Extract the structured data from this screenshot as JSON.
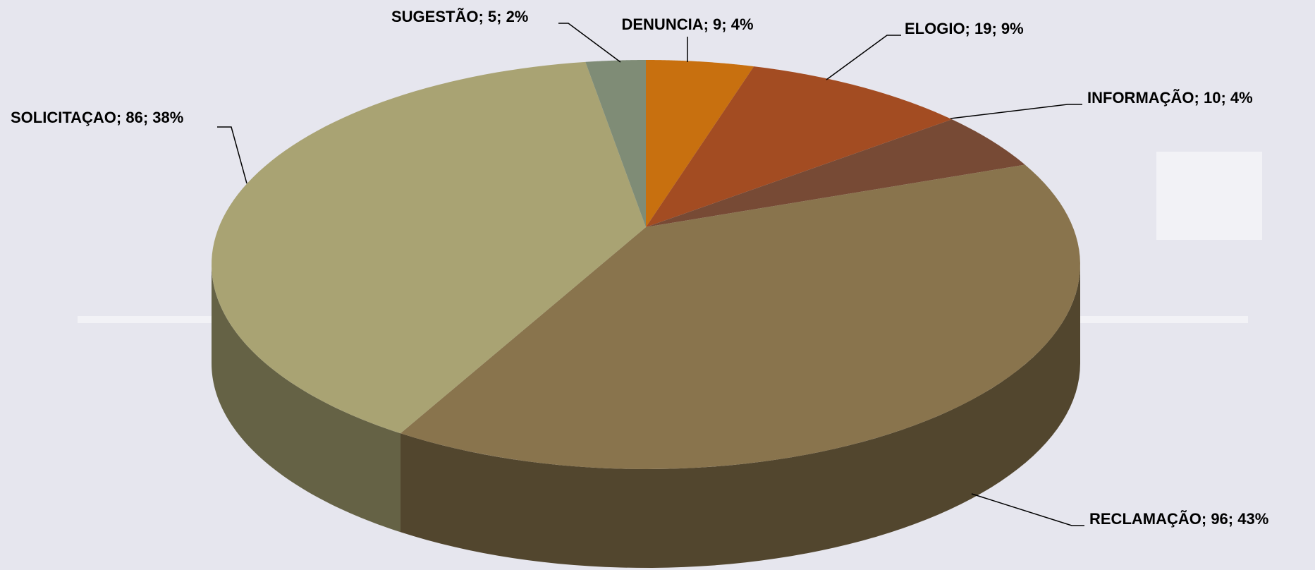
{
  "chart_data": {
    "type": "pie3d",
    "values": [
      9,
      19,
      10,
      96,
      86,
      5
    ],
    "value_labels": [
      "DENUNCIA; 9; 4%",
      "ELOGIO; 19; 9%",
      "INFORMAÇÃO; 10; 4%",
      "RECLAMAÇÃO; 96; 43%",
      "SOLICITAÇAO; 86; 38%",
      "SUGESTÃO; 5; 2%"
    ],
    "colors": [
      "#c8700f",
      "#a34c22",
      "#774a35",
      "#89744d",
      "#a9a373",
      "#7f8c76"
    ]
  }
}
